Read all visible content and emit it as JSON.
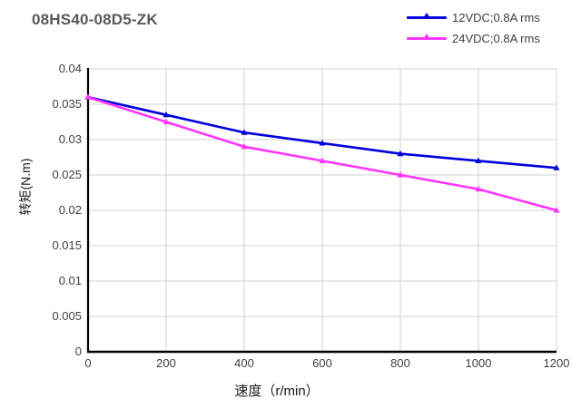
{
  "title": "08HS40-08D5-ZK",
  "style": {
    "title_color": "#595959",
    "grid_color": "#D9D9D9",
    "axis_color": "#000000",
    "tick_label_color": "#404040",
    "series1_color": "#0000DD",
    "series2_color": "#FF35FF",
    "background": "#FFFFFF"
  },
  "legend": {
    "position": "top-right",
    "items": [
      {
        "label": "12VDC;0.8A rms",
        "color": "#0000DD",
        "marker": "triangle-marker-icon"
      },
      {
        "label": "24VDC;0.8A rms",
        "color": "#FF35FF",
        "marker": "triangle-marker-icon"
      }
    ]
  },
  "chart_data": {
    "type": "line",
    "title": "08HS40-08D5-ZK",
    "xlabel": "速度（r/min）",
    "ylabel": "转矩(N.m)",
    "x": [
      0,
      200,
      400,
      600,
      800,
      1000,
      1200
    ],
    "series": [
      {
        "name": "12VDC;0.8A rms",
        "color": "#0000DD",
        "values": [
          0.036,
          0.0335,
          0.031,
          0.0295,
          0.028,
          0.027,
          0.026
        ]
      },
      {
        "name": "24VDC;0.8A rms",
        "color": "#FF35FF",
        "values": [
          0.036,
          0.0325,
          0.029,
          0.027,
          0.025,
          0.023,
          0.02
        ]
      }
    ],
    "xlim": [
      0,
      1200
    ],
    "ylim": [
      0,
      0.04
    ],
    "x_ticks": [
      "0",
      "200",
      "400",
      "600",
      "800",
      "1000",
      "1200"
    ],
    "y_ticks": [
      "0",
      "0.005",
      "0.01",
      "0.015",
      "0.02",
      "0.025",
      "0.03",
      "0.035",
      "0.04"
    ],
    "grid": true,
    "legend_position": "top-right",
    "marker": "triangle"
  }
}
